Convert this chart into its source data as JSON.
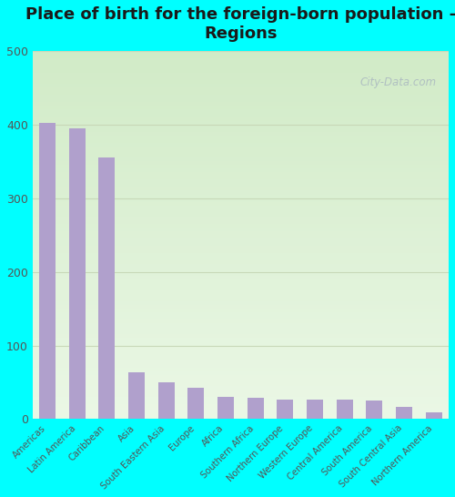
{
  "title": "Place of birth for the foreign-born population -\nRegions",
  "categories": [
    "Americas",
    "Latin America",
    "Caribbean",
    "Asia",
    "South Eastern Asia",
    "Europe",
    "Africa",
    "Southern Africa",
    "Northern Europe",
    "Western Europe",
    "Central America",
    "South America",
    "South Central Asia",
    "Northern America"
  ],
  "values": [
    402,
    394,
    355,
    63,
    50,
    42,
    30,
    29,
    27,
    26,
    26,
    25,
    17,
    9
  ],
  "bar_color": "#b0a0cc",
  "background_color": "#00ffff",
  "plot_bg_color": "#dcecd8",
  "ylim": [
    0,
    500
  ],
  "yticks": [
    0,
    100,
    200,
    300,
    400,
    500
  ],
  "grid_color": "#c8d8b8",
  "title_fontsize": 13,
  "tick_label_color": "#555555",
  "watermark_text": "City-Data.com"
}
